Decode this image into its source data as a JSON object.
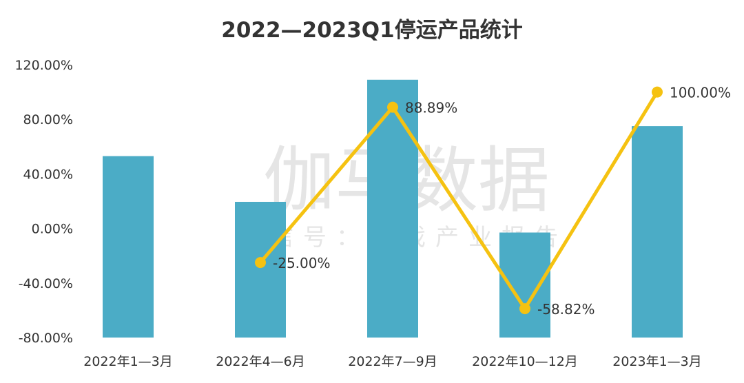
{
  "chart_data": {
    "type": "bar",
    "title": "2022—2023Q1停运产品统计",
    "categories": [
      "2022年1—3月",
      "2022年4—6月",
      "2022年7—9月",
      "2022年10—12月",
      "2023年1—3月"
    ],
    "y_ticks": [
      "120.00%",
      "80.00%",
      "40.00%",
      "0.00%",
      "-40.00%",
      "-80.00%"
    ],
    "ylim": [
      -80,
      120
    ],
    "series": [
      {
        "type": "bar",
        "values": [
          53,
          19.5,
          109,
          -3,
          75
        ],
        "color": "#4bacc6"
      },
      {
        "type": "line",
        "values": [
          null,
          -25.0,
          88.89,
          -58.82,
          100.0
        ],
        "labels": [
          "",
          "-25.00%",
          "88.89%",
          "-58.82%",
          "100.00%"
        ],
        "color": "#f5c211"
      }
    ],
    "grid": false,
    "legend": "none"
  },
  "watermark": {
    "main": "伽马数据",
    "sub": "微信号：游戏产业报告"
  }
}
